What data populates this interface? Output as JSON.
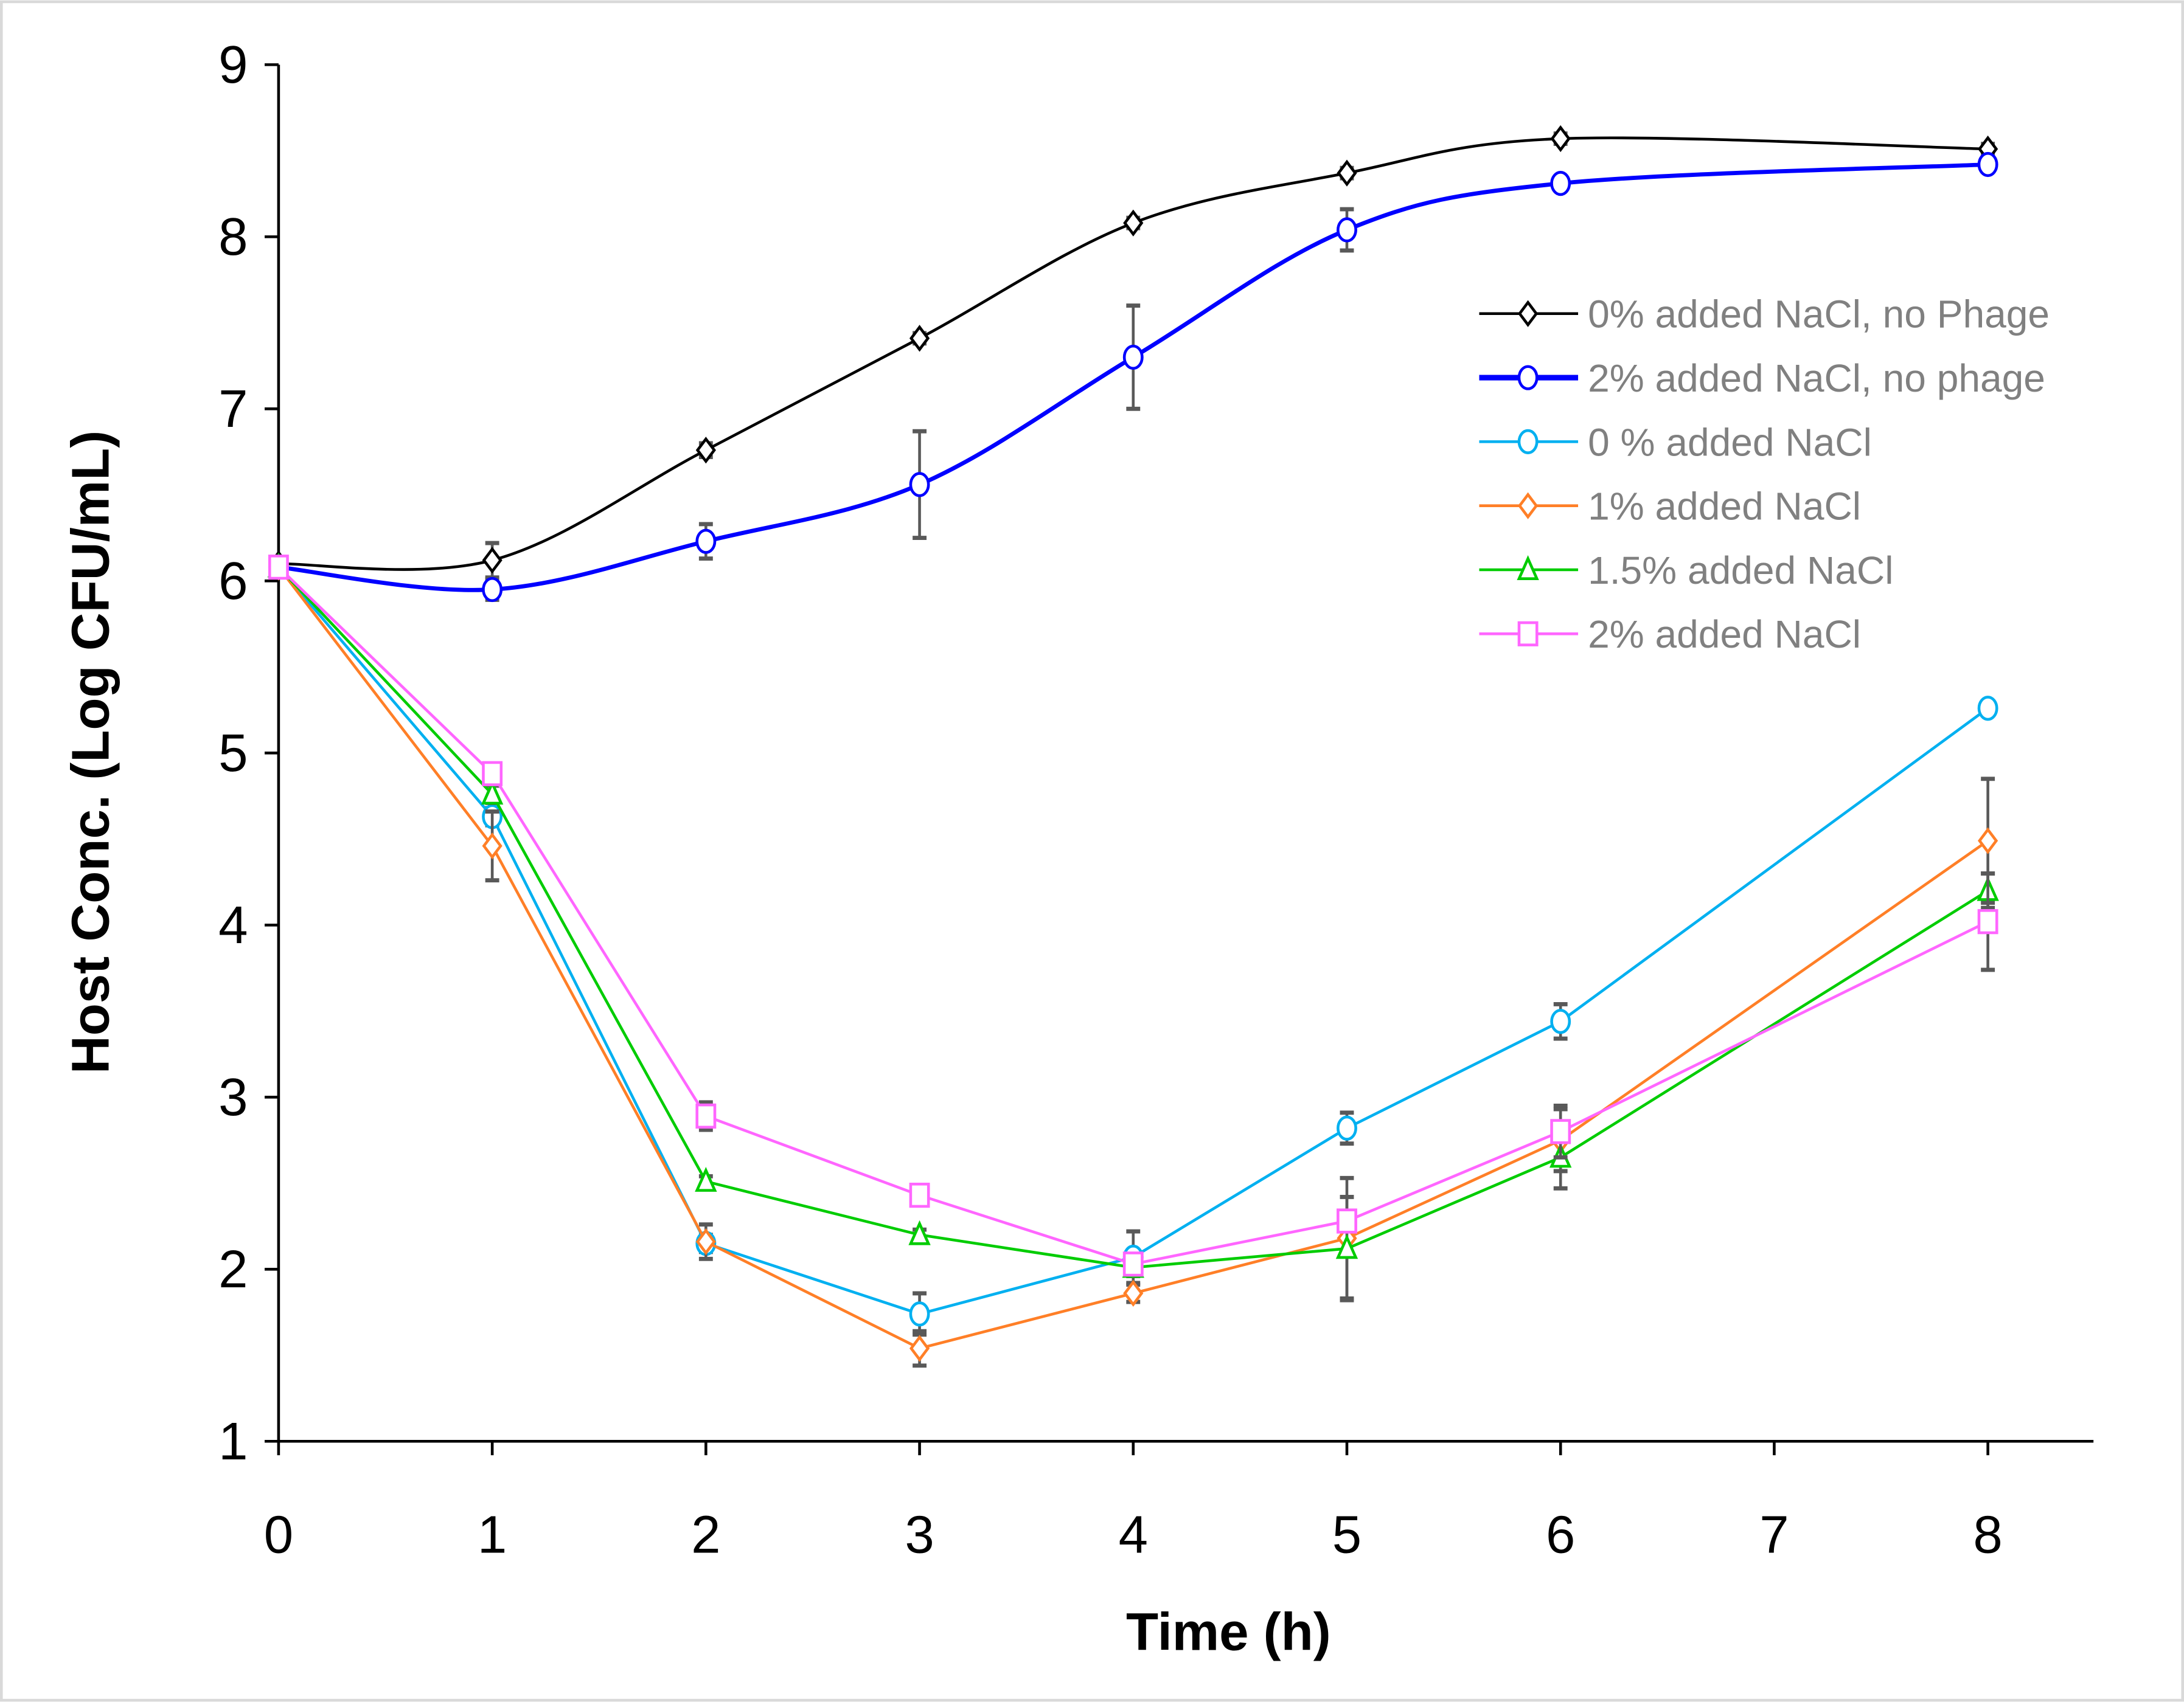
{
  "chart_data": {
    "type": "line",
    "title": "",
    "xlabel": "Time (h)",
    "ylabel": "Host Conc. (Log CFU/mL)",
    "xlim": [
      0,
      8.5
    ],
    "ylim": [
      1,
      9
    ],
    "xticks": [
      "0",
      "1",
      "2",
      "3",
      "4",
      "5",
      "6",
      "7",
      "8"
    ],
    "yticks": [
      "1",
      "2",
      "3",
      "4",
      "5",
      "6",
      "7",
      "8",
      "9"
    ],
    "grid": false,
    "legend_position": "top-right",
    "x": [
      0,
      1,
      2,
      3,
      4,
      5,
      6,
      8
    ],
    "series": [
      {
        "name": "0% added NaCl, no Phage",
        "color": "#000000",
        "marker": "diamond",
        "smooth": true,
        "values": [
          6.1,
          6.12,
          6.76,
          7.41,
          8.08,
          8.37,
          8.57,
          8.51
        ],
        "errors": [
          0.02,
          0.1,
          0.04,
          0.03,
          0.03,
          0.03,
          0.03,
          0.03
        ]
      },
      {
        "name": "2% added NaCl, no phage",
        "color": "#0000FF",
        "marker": "circle",
        "smooth": true,
        "values": [
          6.08,
          5.95,
          6.23,
          6.56,
          7.3,
          8.04,
          8.31,
          8.42
        ],
        "errors": [
          0.02,
          0.06,
          0.1,
          0.31,
          0.3,
          0.12,
          0.03,
          0.03
        ]
      },
      {
        "name": "0 % added NaCl",
        "color": "#00B0F0",
        "marker": "circle",
        "smooth": false,
        "values": [
          6.08,
          4.63,
          2.15,
          1.74,
          2.07,
          2.82,
          3.44,
          5.26
        ],
        "errors": [
          0.02,
          0.05,
          0.05,
          0.12,
          0.15,
          0.09,
          0.1,
          0.04
        ]
      },
      {
        "name": "1% added NaCl",
        "color": "#FF7F27",
        "marker": "diamond",
        "smooth": false,
        "values": [
          6.08,
          4.46,
          2.16,
          1.54,
          1.86,
          2.18,
          2.75,
          4.49
        ],
        "errors": [
          0.02,
          0.2,
          0.1,
          0.1,
          0.05,
          0.35,
          0.18,
          0.36
        ]
      },
      {
        "name": "1.5% added NaCl",
        "color": "#00CC00",
        "marker": "triangle",
        "smooth": false,
        "values": [
          6.08,
          4.76,
          2.51,
          2.2,
          2.01,
          2.12,
          2.65,
          4.2
        ],
        "errors": [
          0.02,
          0.05,
          0.03,
          0.03,
          0.05,
          0.3,
          0.18,
          0.1
        ]
      },
      {
        "name": "2% added NaCl",
        "color": "#FF66FF",
        "marker": "square",
        "smooth": false,
        "values": [
          6.08,
          4.88,
          2.89,
          2.43,
          2.03,
          2.28,
          2.8,
          4.02
        ],
        "errors": [
          0.02,
          0.05,
          0.08,
          0.06,
          0.05,
          0.06,
          0.15,
          0.28
        ]
      }
    ]
  }
}
